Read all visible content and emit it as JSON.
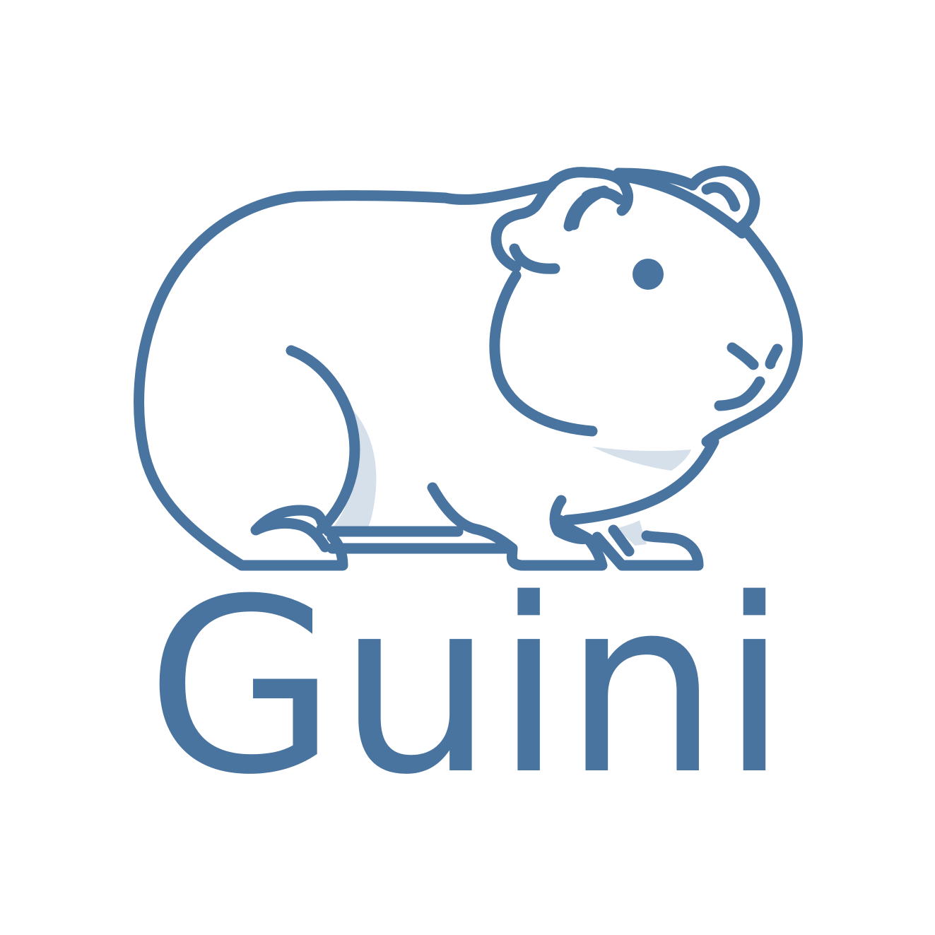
{
  "brand": {
    "name": "Guini",
    "mascot_icon": "guinea-pig-icon",
    "colors": {
      "primary": "#4a74a0",
      "shadow": "#d6e0ea",
      "background": "#ffffff"
    }
  }
}
